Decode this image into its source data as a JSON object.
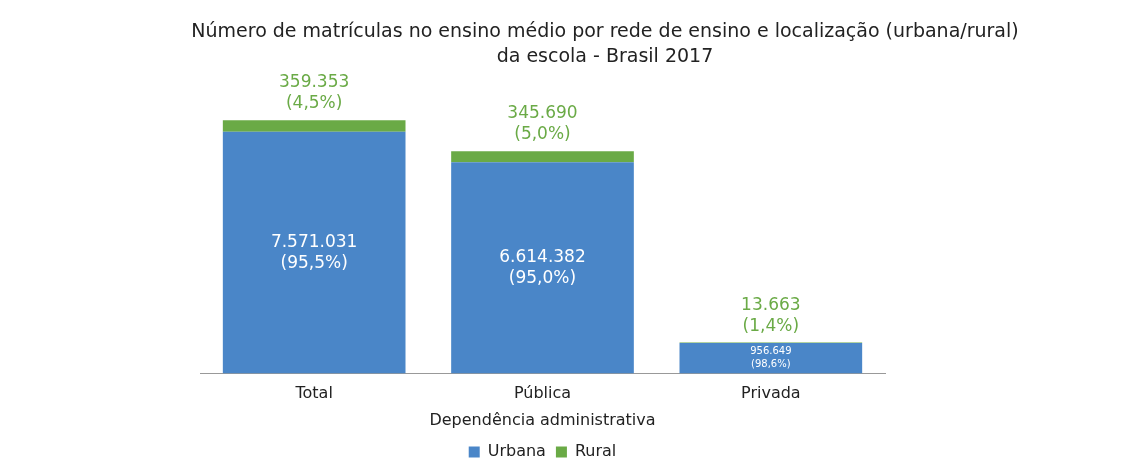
{
  "chart_data": {
    "type": "bar",
    "title": "Número de matrículas no ensino médio por rede de ensino e localização (urbana/rural) da escola - Brasil 2017",
    "xlabel": "Dependência administrativa",
    "categories": [
      "Total",
      "Pública",
      "Privada"
    ],
    "stacked": true,
    "legend": "bottom",
    "grid": false,
    "tick_labels": "x",
    "series": [
      {
        "name": "Urbana",
        "color": "#4a86c8",
        "values": [
          7571031,
          6614382,
          956649
        ],
        "value_labels": [
          "7.571.031\n(95,5%)",
          "6.614.382\n(95,0%)",
          "956.649\n(98,6%)"
        ]
      },
      {
        "name": "Rural",
        "color": "#6aaa46",
        "values": [
          359353,
          345690,
          13663
        ],
        "value_labels": [
          "359.353\n(4,5%)",
          "345.690\n(5,0%)",
          "13.663\n(1,4%)"
        ]
      }
    ]
  }
}
